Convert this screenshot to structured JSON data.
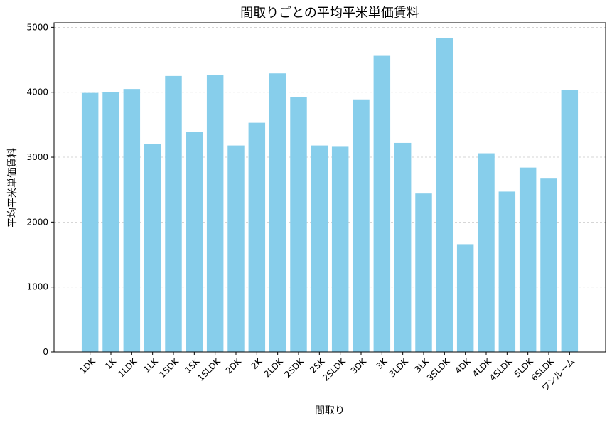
{
  "chart_data": {
    "type": "bar",
    "title": "間取りごとの平均平米単価賃料",
    "xlabel": "間取り",
    "ylabel": "平均平米単価賃料",
    "categories": [
      "1DK",
      "1K",
      "1LDK",
      "1LK",
      "1SDK",
      "1SK",
      "1SLDK",
      "2DK",
      "2K",
      "2LDK",
      "2SDK",
      "2SK",
      "2SLDK",
      "3DK",
      "3K",
      "3LDK",
      "3LK",
      "3SLDK",
      "4DK",
      "4LDK",
      "4SLDK",
      "5LDK",
      "6SLDK",
      "ワンルーム"
    ],
    "values": [
      3990,
      4000,
      4050,
      3200,
      4250,
      3390,
      4270,
      3180,
      3530,
      4290,
      3930,
      3180,
      3160,
      3890,
      4560,
      3220,
      2440,
      4840,
      1660,
      3060,
      2470,
      2840,
      2670,
      4030
    ],
    "ylim": [
      0,
      5070
    ],
    "yticks": [
      0,
      1000,
      2000,
      3000,
      4000,
      5000
    ],
    "grid": "y-dashed",
    "bar_color": "#87ceeb",
    "axis_color": "#000000",
    "grid_color": "#c8c8c8"
  }
}
